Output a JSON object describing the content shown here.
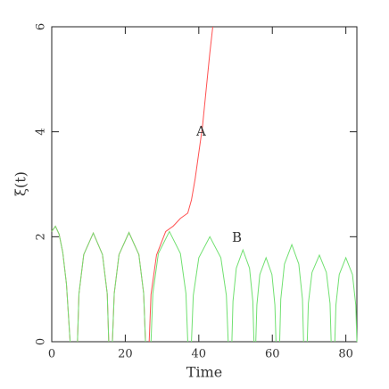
{
  "chart_data": {
    "type": "line",
    "xlabel": "Time",
    "ylabel": "ξ(t)",
    "xlim": [
      0,
      83
    ],
    "ylim": [
      0,
      6
    ],
    "xticks": [
      0,
      20,
      40,
      60,
      80
    ],
    "yticks": [
      0,
      2,
      4,
      6
    ],
    "annotations": [
      "A",
      "B"
    ],
    "series": [
      {
        "name": "A",
        "color": "#ff5050",
        "x": [
          0,
          1,
          2,
          3,
          4,
          5,
          6,
          7,
          7.4,
          8.7,
          11.3,
          13.8,
          15.1,
          15.5,
          16,
          16.5,
          17,
          18.3,
          21,
          23.7,
          25,
          25.5,
          26,
          26.5,
          27,
          28.5,
          31,
          33,
          35,
          37,
          38,
          39,
          40,
          41,
          42,
          43,
          43.8
        ],
        "values": [
          2.1,
          2.2,
          2.05,
          1.7,
          1.1,
          0,
          null,
          0,
          0.91,
          1.66,
          2.07,
          1.66,
          0.91,
          0,
          null,
          0,
          0.92,
          1.66,
          2.08,
          1.66,
          0.92,
          0,
          null,
          0,
          0.9,
          1.65,
          2.1,
          2.2,
          2.35,
          2.45,
          2.7,
          3.1,
          3.6,
          4.1,
          4.8,
          5.5,
          6
        ]
      },
      {
        "name": "B",
        "color": "#70e070",
        "x": [
          0,
          1,
          2,
          3,
          4,
          5,
          6,
          7,
          7.4,
          8.7,
          11.3,
          13.8,
          15.1,
          15.5,
          16,
          16.5,
          17,
          18.3,
          21,
          23.7,
          25,
          25.5,
          26,
          27,
          27.5,
          29,
          32,
          35,
          36.5,
          37,
          37.5,
          38,
          38.5,
          40,
          43,
          46,
          47.5,
          48,
          48.5,
          49,
          49.3,
          50.2,
          52,
          53.8,
          54.7,
          55,
          55.2,
          55.5,
          55.8,
          56.6,
          58.3,
          59.9,
          60.7,
          61,
          61.5,
          62,
          62.3,
          63.3,
          65.3,
          67.2,
          68.2,
          68.5,
          69,
          69.5,
          69.8,
          70.8,
          72.8,
          74.7,
          75.7,
          76,
          76.5,
          77,
          77.3,
          78.2,
          80,
          81.8,
          82.7,
          83
        ],
        "values": [
          2.1,
          2.2,
          2.05,
          1.7,
          1.1,
          0,
          null,
          0,
          0.91,
          1.66,
          2.07,
          1.66,
          0.91,
          0,
          null,
          0,
          0.92,
          1.66,
          2.08,
          1.66,
          0.92,
          0,
          null,
          0,
          0.92,
          1.68,
          2.1,
          1.68,
          0.92,
          0,
          null,
          0,
          0.88,
          1.6,
          2.0,
          1.6,
          0.88,
          0,
          null,
          0,
          0.77,
          1.4,
          1.75,
          1.4,
          0.77,
          0,
          null,
          0,
          0.7,
          1.28,
          1.6,
          1.28,
          0.7,
          0,
          null,
          0,
          0.81,
          1.48,
          1.85,
          1.48,
          0.81,
          0,
          null,
          0,
          0.73,
          1.32,
          1.65,
          1.32,
          0.73,
          0,
          null,
          0,
          0.7,
          1.28,
          1.6,
          1.28,
          0.7,
          0
        ]
      }
    ]
  }
}
